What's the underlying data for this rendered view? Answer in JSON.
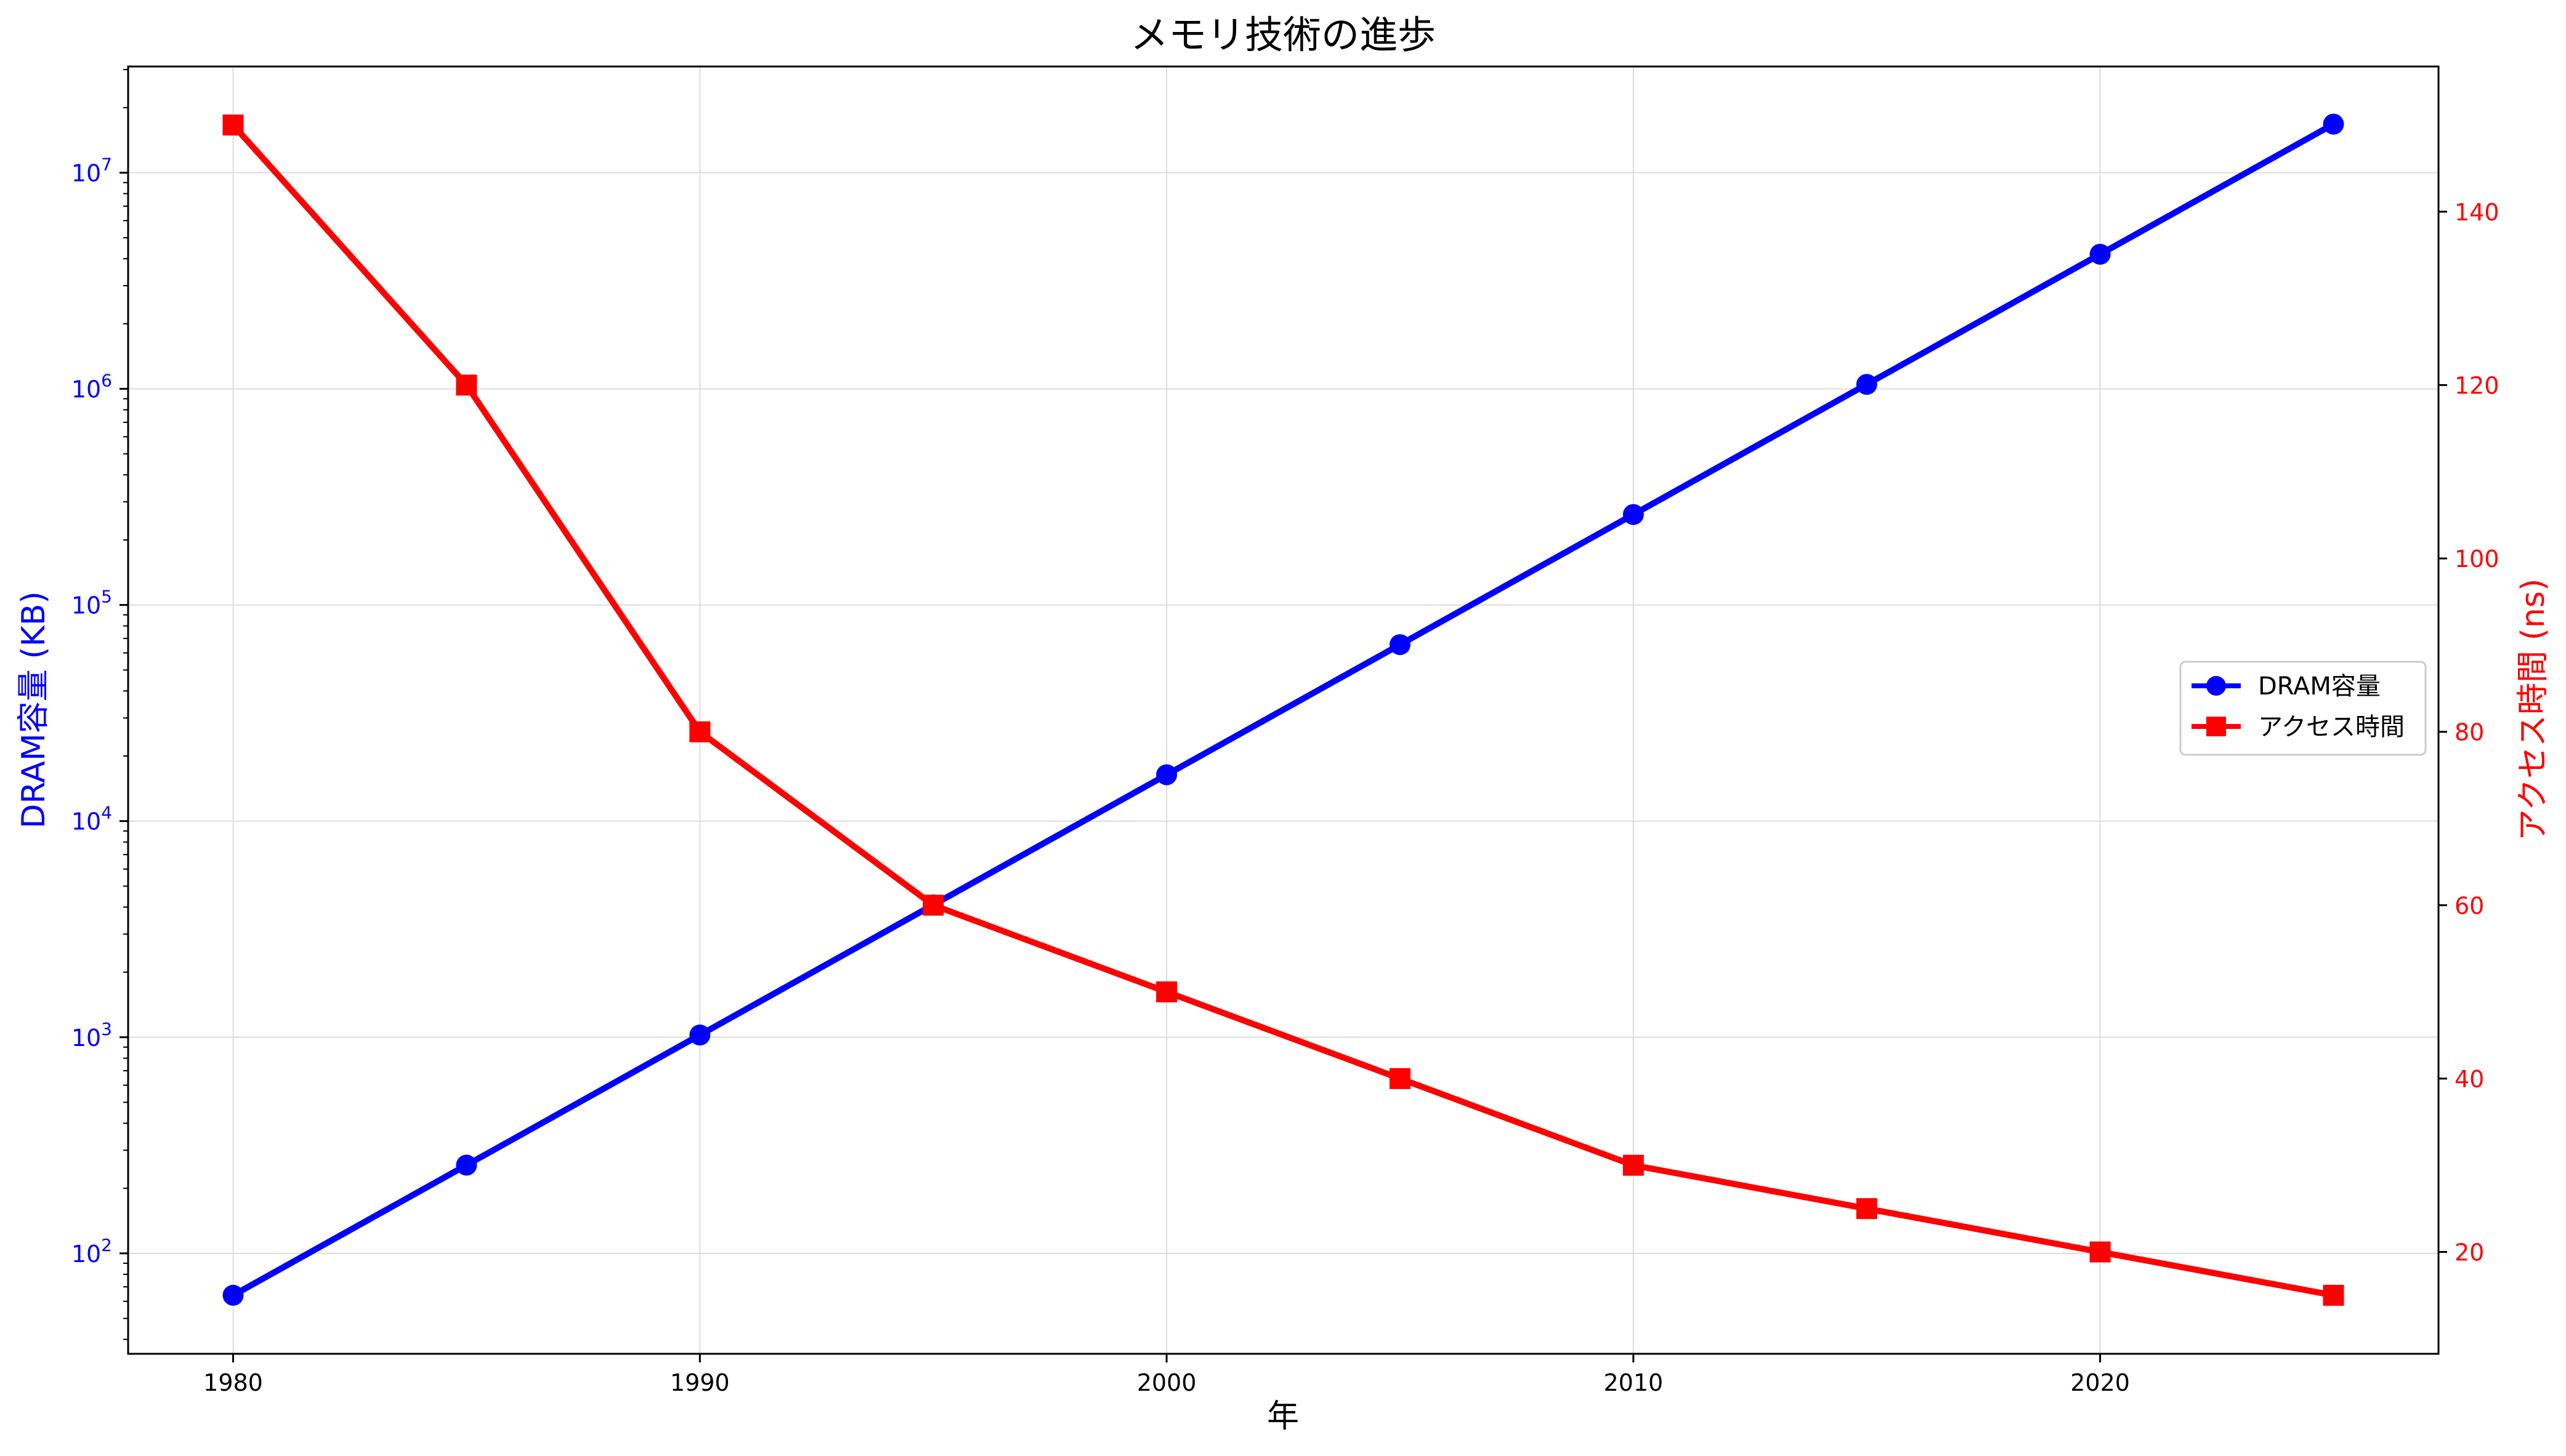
{
  "chart_data": {
    "type": "line",
    "title": "メモリ技術の進歩",
    "xlabel": "年",
    "ylabel_left": "DRAM容量 (KB)",
    "ylabel_right": "アクセス時間 (ns)",
    "x": [
      1980,
      1985,
      1990,
      1995,
      2000,
      2005,
      2010,
      2015,
      2020,
      2025
    ],
    "x_ticks": [
      "1980",
      "1990",
      "2000",
      "2010",
      "2020"
    ],
    "xlim": [
      1977.75,
      2027.25
    ],
    "left_axis": {
      "scale": "log",
      "ylim": [
        34.3,
        31000000
      ],
      "ticks": [
        {
          "exp": 2,
          "value": 100
        },
        {
          "exp": 3,
          "value": 1000
        },
        {
          "exp": 4,
          "value": 10000
        },
        {
          "exp": 5,
          "value": 100000
        },
        {
          "exp": 6,
          "value": 1000000
        },
        {
          "exp": 7,
          "value": 10000000
        }
      ],
      "color": "#0000ff"
    },
    "right_axis": {
      "scale": "linear",
      "ylim": [
        8.25,
        156.75
      ],
      "ticks": [
        "20",
        "40",
        "60",
        "80",
        "100",
        "120",
        "140"
      ],
      "color": "#ff0000"
    },
    "series": [
      {
        "name": "DRAM容量",
        "axis": "left",
        "marker": "circle",
        "color": "#0000ff",
        "values": [
          64,
          256,
          1024,
          4096,
          16384,
          65536,
          262144,
          1048576,
          4194304,
          16777216
        ]
      },
      {
        "name": "アクセス時間",
        "axis": "right",
        "marker": "square",
        "color": "#ff0000",
        "values": [
          150,
          120,
          80,
          60,
          50,
          40,
          30,
          25,
          20,
          15
        ]
      }
    ],
    "grid": true,
    "legend_position": "center-right"
  }
}
